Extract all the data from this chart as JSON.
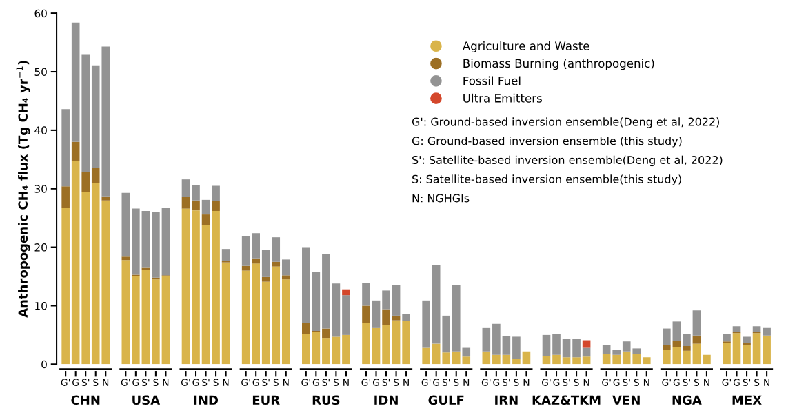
{
  "chart_data": {
    "type": "bar",
    "stacked": true,
    "ylabel": "Anthropogenic CH₄ flux (Tg CH₄ yr$^{−1}$)",
    "categories": [
      "G'",
      "G",
      "S'",
      "S",
      "N",
      null,
      "G'",
      "G",
      "S'",
      "S",
      "N",
      null,
      "G'",
      "G",
      "S'",
      "S",
      "N",
      null,
      "G'",
      "G",
      "S'",
      "S",
      "N",
      null,
      "G'",
      "G",
      "S'",
      "S",
      "N",
      null,
      "G'",
      "G",
      "S'",
      "S",
      "N",
      null,
      "G'",
      "G",
      "S'",
      "S",
      "N",
      null,
      "G'",
      "G",
      "S'",
      "S",
      "N",
      null,
      "G'",
      "G",
      "S'",
      "S",
      "N",
      null,
      "G'",
      "G",
      "S'",
      "S",
      "N",
      null,
      "G'",
      "G",
      "S'",
      "S",
      "N",
      null,
      "G'",
      "G",
      "S'",
      "S",
      "N"
    ],
    "series": [
      {
        "name": "Agriculture and Waste",
        "color": "#d9b44a",
        "values": [
          26.7,
          34.7,
          29.4,
          30.9,
          28.0,
          null,
          17.8,
          15.1,
          16.1,
          14.5,
          15.1,
          null,
          26.6,
          26.3,
          23.8,
          26.2,
          17.4,
          null,
          16.0,
          17.2,
          14.1,
          16.7,
          14.5,
          null,
          5.2,
          5.5,
          4.5,
          4.7,
          5.0,
          null,
          7.1,
          6.3,
          6.7,
          7.5,
          7.4,
          null,
          2.8,
          3.5,
          2.0,
          2.2,
          1.3,
          null,
          2.2,
          1.6,
          1.6,
          0.9,
          2.2,
          null,
          1.4,
          1.6,
          1.2,
          1.2,
          1.3,
          null,
          1.7,
          1.6,
          2.2,
          1.7,
          1.2,
          null,
          2.4,
          2.9,
          2.3,
          3.5,
          1.6,
          null,
          3.6,
          5.3,
          3.3,
          5.3,
          4.9
        ]
      },
      {
        "name": "Biomass Burning (anthropogenic)",
        "color": "#9c6f24",
        "values": [
          3.7,
          3.3,
          3.5,
          2.7,
          0.7,
          null,
          0.6,
          0.2,
          0.5,
          0.3,
          0.1,
          null,
          2.0,
          1.7,
          1.8,
          1.7,
          0.2,
          null,
          0.8,
          0.9,
          0.8,
          0.8,
          0.7,
          null,
          1.8,
          0.2,
          1.6,
          null,
          null,
          null,
          2.9,
          null,
          2.7,
          0.8,
          null,
          null,
          null,
          null,
          null,
          null,
          null,
          null,
          null,
          null,
          null,
          null,
          null,
          null,
          null,
          null,
          null,
          null,
          null,
          null,
          null,
          null,
          null,
          null,
          null,
          null,
          0.9,
          1.1,
          0.8,
          1.4,
          null,
          null,
          0.3,
          0.2,
          0.3,
          0.2,
          null
        ]
      },
      {
        "name": "Fossil Fuel",
        "color": "#939393",
        "values": [
          13.2,
          20.4,
          20.0,
          17.5,
          25.6,
          null,
          10.9,
          11.3,
          9.6,
          11.2,
          11.6,
          null,
          3.0,
          2.6,
          2.5,
          2.6,
          2.1,
          null,
          5.1,
          4.3,
          4.7,
          4.2,
          2.7,
          null,
          13.0,
          10.1,
          12.7,
          9.1,
          6.8,
          null,
          3.9,
          4.6,
          3.2,
          5.2,
          1.2,
          null,
          8.1,
          13.5,
          6.3,
          11.3,
          1.5,
          null,
          4.1,
          5.3,
          3.2,
          3.8,
          null,
          null,
          3.6,
          3.6,
          3.1,
          3.1,
          1.5,
          null,
          1.6,
          0.9,
          1.7,
          1.0,
          null,
          null,
          2.8,
          3.3,
          2.1,
          4.3,
          null,
          null,
          1.2,
          1.0,
          1.1,
          1.0,
          1.4
        ]
      },
      {
        "name": "Ultra Emitters",
        "color": "#d4472b",
        "values": [
          null,
          null,
          null,
          null,
          null,
          null,
          null,
          null,
          null,
          null,
          null,
          null,
          null,
          null,
          null,
          null,
          null,
          null,
          null,
          null,
          null,
          null,
          null,
          null,
          null,
          null,
          null,
          null,
          1.0,
          null,
          null,
          null,
          null,
          null,
          null,
          null,
          null,
          null,
          null,
          null,
          null,
          null,
          null,
          null,
          null,
          null,
          null,
          null,
          null,
          null,
          null,
          null,
          1.3,
          null,
          null,
          null,
          null,
          null,
          null,
          null,
          null,
          null,
          null,
          null,
          null,
          null,
          null,
          null,
          null,
          null,
          null
        ]
      }
    ],
    "ylim": [
      0,
      60
    ],
    "yticks": [
      0,
      10,
      20,
      30,
      40,
      50,
      60
    ],
    "grid": false,
    "legend": "top right",
    "annotations": [
      "CHN",
      "USA",
      "IND",
      "EUR",
      "RUS",
      "IDN",
      "GULF",
      "IRN",
      "KAZ&TKM",
      "VEN",
      "NGA",
      "MEX",
      "G': Ground-based inversion ensemble(Deng et al, 2022)",
      "G: Ground-based inversion ensemble (this study)",
      "S': Satellite-based inversion ensemble(Deng et al, 2022)",
      "S: Satellite-based inversion ensemble(this study)",
      "N: NGHGIs"
    ]
  }
}
